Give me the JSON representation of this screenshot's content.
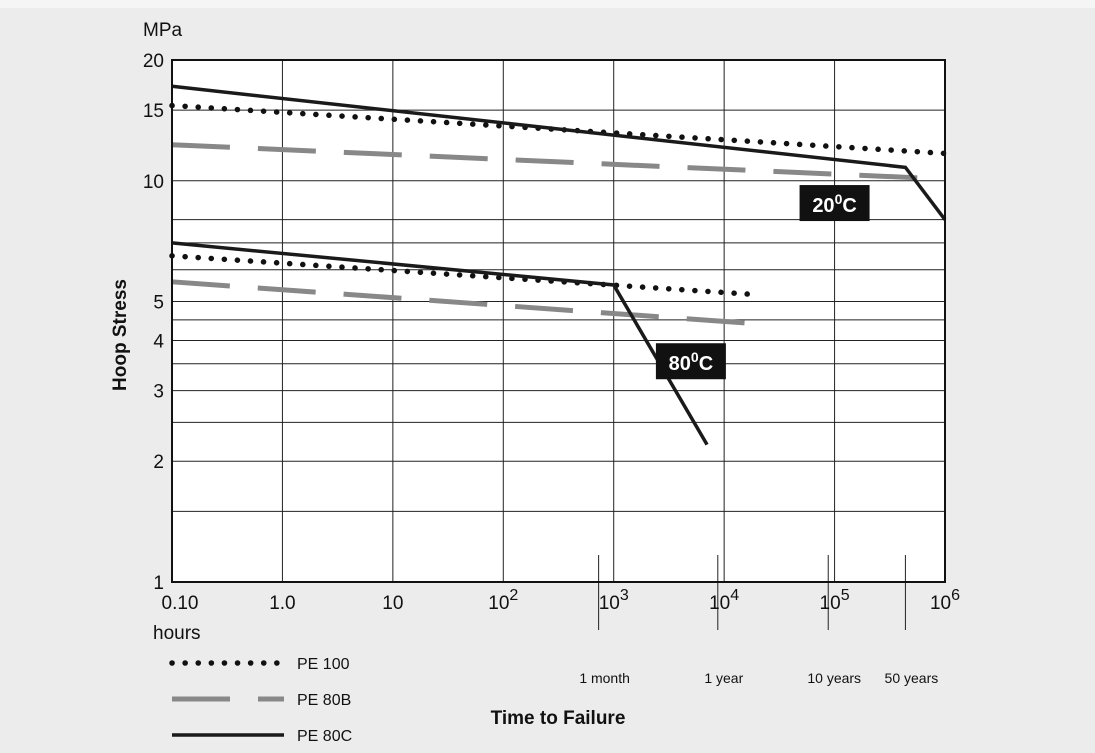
{
  "colors": {
    "background": "#ececec",
    "plot_background": "#ffffff",
    "pe100": "#111111",
    "pe80b": "#888888",
    "pe80c": "#1a1a1a",
    "label_box": "#111111"
  },
  "chart_data": {
    "type": "line",
    "x_scale": "log",
    "y_scale": "log",
    "xlim": [
      0.1,
      1000000
    ],
    "ylim": [
      1,
      20
    ],
    "ylabel": "Hoop Stress",
    "yunit": "MPa",
    "xlabel": "Time to Failure",
    "xunit": "hours",
    "grid": true,
    "legend_position": "bottom-left",
    "y_ticks": [
      {
        "value": 1,
        "label": "1"
      },
      {
        "value": 2,
        "label": "2"
      },
      {
        "value": 3,
        "label": "3"
      },
      {
        "value": 4,
        "label": "4"
      },
      {
        "value": 5,
        "label": "5"
      },
      {
        "value": 10,
        "label": "10"
      },
      {
        "value": 15,
        "label": "15"
      },
      {
        "value": 20,
        "label": "20"
      }
    ],
    "y_gridlines": [
      1,
      1.5,
      2,
      2.5,
      3,
      3.5,
      4,
      4.5,
      5,
      6,
      7,
      8,
      10,
      15,
      20
    ],
    "x_ticks": [
      {
        "value": 0.1,
        "base": "0.10",
        "exp": ""
      },
      {
        "value": 1,
        "base": "1.0",
        "exp": ""
      },
      {
        "value": 10,
        "base": "10",
        "exp": ""
      },
      {
        "value": 100,
        "base": "10",
        "exp": "2"
      },
      {
        "value": 1000,
        "base": "10",
        "exp": "3"
      },
      {
        "value": 10000,
        "base": "10",
        "exp": "4"
      },
      {
        "value": 100000,
        "base": "10",
        "exp": "5"
      },
      {
        "value": 1000000,
        "base": "10",
        "exp": "6"
      }
    ],
    "time_markers": [
      {
        "value": 730,
        "label": "1 month"
      },
      {
        "value": 8760,
        "label": "1 year"
      },
      {
        "value": 87600,
        "label": "10 years"
      },
      {
        "value": 438000,
        "label": "50 years"
      }
    ],
    "series": [
      {
        "name": "PE 100",
        "temperature": "20",
        "style": "dotted",
        "x": [
          0.1,
          1000000
        ],
        "y": [
          15.4,
          11.7
        ]
      },
      {
        "name": "PE 80B",
        "temperature": "20",
        "style": "dashed",
        "x": [
          0.1,
          1000000
        ],
        "y": [
          12.3,
          10.1
        ]
      },
      {
        "name": "PE 80C",
        "temperature": "20",
        "style": "solid",
        "x": [
          0.1,
          438000,
          1000000
        ],
        "y": [
          17.2,
          10.8,
          8.0
        ]
      },
      {
        "name": "PE 100",
        "temperature": "80",
        "style": "dotted",
        "x": [
          0.1,
          20000
        ],
        "y": [
          6.5,
          5.2
        ]
      },
      {
        "name": "PE 80B",
        "temperature": "80",
        "style": "dashed",
        "x": [
          0.1,
          20000
        ],
        "y": [
          5.6,
          4.4
        ]
      },
      {
        "name": "PE 80C",
        "temperature": "80",
        "style": "solid",
        "x": [
          0.1,
          1000,
          7000
        ],
        "y": [
          7.0,
          5.5,
          2.2
        ]
      }
    ],
    "annotations": [
      {
        "base": "20",
        "exp": "0",
        "suffix": "C",
        "x": 100000,
        "y": 8.8
      },
      {
        "base": "80",
        "exp": "0",
        "suffix": "C",
        "x": 5000,
        "y": 3.55
      }
    ]
  },
  "legend": [
    {
      "label": "PE 100",
      "style": "dotted"
    },
    {
      "label": "PE 80B",
      "style": "dashed"
    },
    {
      "label": "PE 80C",
      "style": "solid"
    }
  ]
}
